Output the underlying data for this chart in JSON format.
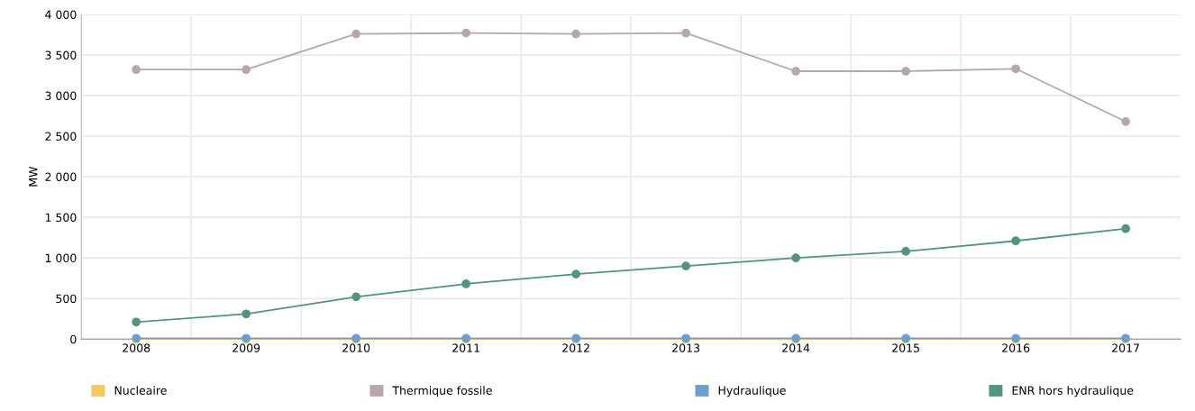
{
  "chart_data": {
    "type": "line",
    "ylabel": "MW",
    "categories": [
      "2008",
      "2009",
      "2010",
      "2011",
      "2012",
      "2013",
      "2014",
      "2015",
      "2016",
      "2017"
    ],
    "series": [
      {
        "name": "Nucleaire",
        "color": "#f5c959",
        "values": [
          0,
          0,
          0,
          0,
          0,
          0,
          0,
          0,
          0,
          0
        ]
      },
      {
        "name": "Thermique fossile",
        "color": "#b8a6ad",
        "values": [
          3320,
          3320,
          3760,
          3770,
          3760,
          3770,
          3300,
          3300,
          3330,
          2680
        ]
      },
      {
        "name": "Hydraulique",
        "color": "#6a9fd3",
        "values": [
          10,
          10,
          10,
          10,
          10,
          10,
          10,
          10,
          10,
          10
        ]
      },
      {
        "name": "ENR hors hydraulique",
        "color": "#4f9580",
        "values": [
          210,
          310,
          520,
          680,
          800,
          900,
          1000,
          1080,
          1210,
          1360
        ]
      }
    ],
    "ylim": [
      0,
      4000
    ],
    "yticks": [
      {
        "value": 0,
        "label": "0"
      },
      {
        "value": 500,
        "label": "500"
      },
      {
        "value": 1000,
        "label": "1 000"
      },
      {
        "value": 1500,
        "label": "1 500"
      },
      {
        "value": 2000,
        "label": "2 000"
      },
      {
        "value": 2500,
        "label": "2 500"
      },
      {
        "value": 3000,
        "label": "3 000"
      },
      {
        "value": 3500,
        "label": "3 500"
      },
      {
        "value": 4000,
        "label": "4 000"
      }
    ],
    "grid": true,
    "legend": "bottom",
    "marker": "circle",
    "line_style": "solid"
  }
}
